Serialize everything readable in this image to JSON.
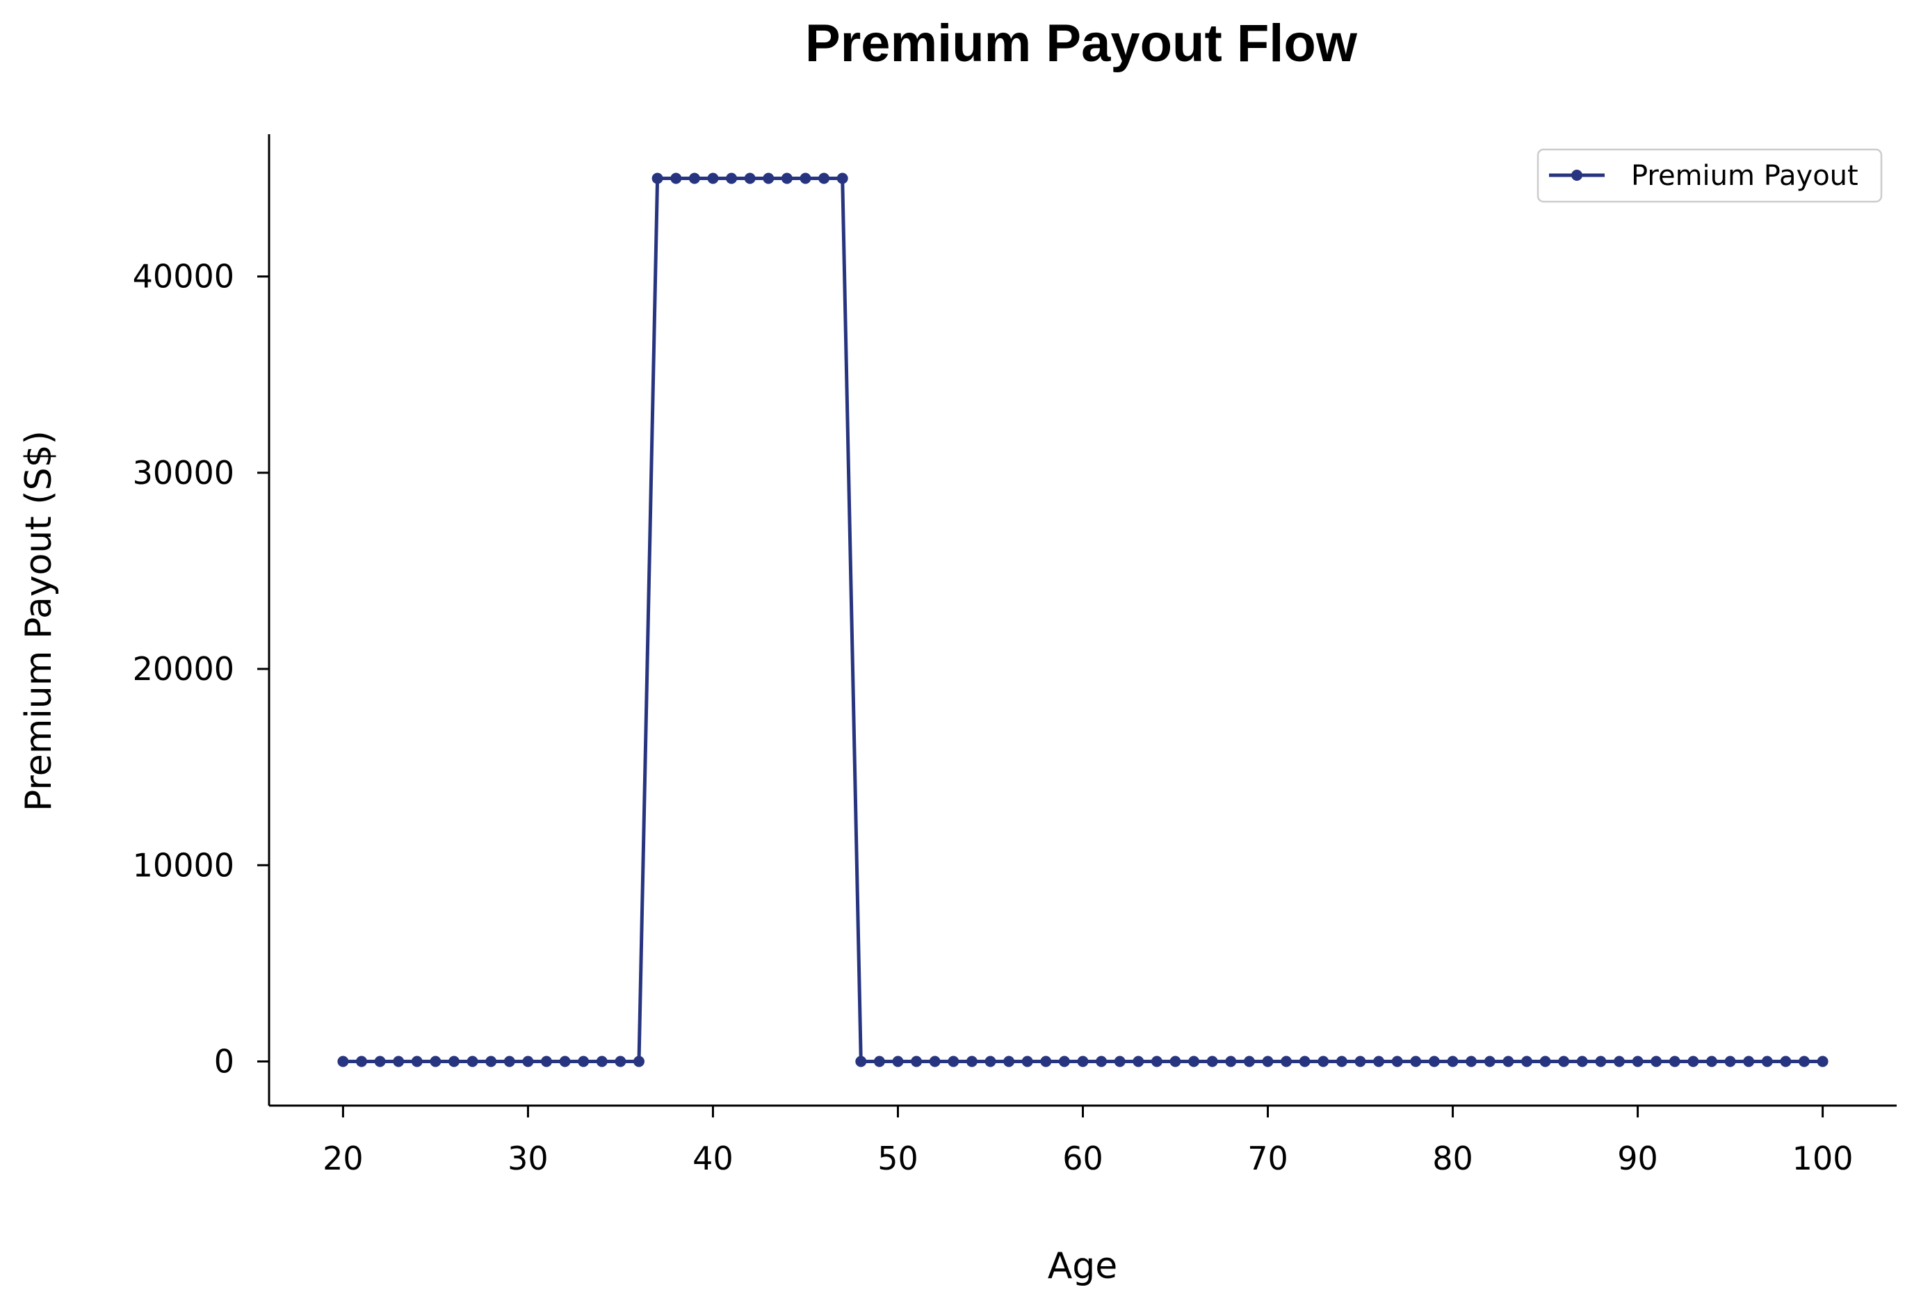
{
  "chart_data": {
    "type": "line",
    "title": "Premium Payout Flow",
    "xlabel": "Age",
    "ylabel": "Premium Payout (S$)",
    "xlim": [
      16,
      104
    ],
    "ylim": [
      -2250,
      47250
    ],
    "xticks": [
      20,
      30,
      40,
      50,
      60,
      70,
      80,
      90,
      100
    ],
    "yticks": [
      0,
      10000,
      20000,
      30000,
      40000
    ],
    "grid": false,
    "legend_position": "top-right",
    "series": [
      {
        "name": "Premium Payout",
        "color": "#27347f",
        "marker": "circle",
        "x": [
          20,
          21,
          22,
          23,
          24,
          25,
          26,
          27,
          28,
          29,
          30,
          31,
          32,
          33,
          34,
          35,
          36,
          37,
          38,
          39,
          40,
          41,
          42,
          43,
          44,
          45,
          46,
          47,
          48,
          49,
          50,
          51,
          52,
          53,
          54,
          55,
          56,
          57,
          58,
          59,
          60,
          61,
          62,
          63,
          64,
          65,
          66,
          67,
          68,
          69,
          70,
          71,
          72,
          73,
          74,
          75,
          76,
          77,
          78,
          79,
          80,
          81,
          82,
          83,
          84,
          85,
          86,
          87,
          88,
          89,
          90,
          91,
          92,
          93,
          94,
          95,
          96,
          97,
          98,
          99,
          100
        ],
        "y": [
          0,
          0,
          0,
          0,
          0,
          0,
          0,
          0,
          0,
          0,
          0,
          0,
          0,
          0,
          0,
          0,
          0,
          45000,
          45000,
          45000,
          45000,
          45000,
          45000,
          45000,
          45000,
          45000,
          45000,
          45000,
          0,
          0,
          0,
          0,
          0,
          0,
          0,
          0,
          0,
          0,
          0,
          0,
          0,
          0,
          0,
          0,
          0,
          0,
          0,
          0,
          0,
          0,
          0,
          0,
          0,
          0,
          0,
          0,
          0,
          0,
          0,
          0,
          0,
          0,
          0,
          0,
          0,
          0,
          0,
          0,
          0,
          0,
          0,
          0,
          0,
          0,
          0,
          0,
          0,
          0,
          0,
          0,
          0
        ]
      }
    ]
  }
}
